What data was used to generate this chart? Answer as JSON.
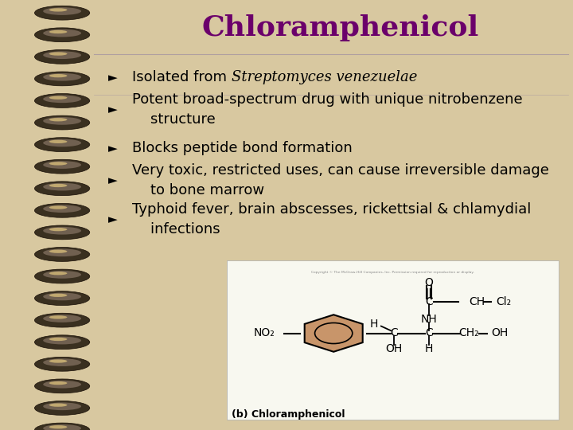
{
  "title": "Chloramphenicol",
  "title_color": "#6B006B",
  "title_fontsize": 26,
  "bg_color": "#E0DAE0",
  "notebook_bg": "#D8C8A0",
  "bullet_char": "►",
  "bullet_color": "#000000",
  "text_color": "#000000",
  "bullet_fontsize": 13,
  "line_color": "#B0A0A0",
  "bullets": [
    {
      "normal": "Isolated from ",
      "italic": "Streptomyces venezuelae",
      "rest": ""
    },
    {
      "normal": "Potent broad-spectrum drug with unique nitrobenzene\n    structure",
      "italic": "",
      "rest": ""
    },
    {
      "normal": "Blocks peptide bond formation",
      "italic": "",
      "rest": ""
    },
    {
      "normal": "Very toxic, restricted uses, can cause irreversible damage\n    to bone marrow",
      "italic": "",
      "rest": ""
    },
    {
      "normal": "Typhoid fever, brain abscesses, rickettsial & chlamydial\n    infections",
      "italic": "",
      "rest": ""
    }
  ],
  "img_bg": "#F8F8F0",
  "benzene_color": "#C8956A",
  "chem_label": "(b) Chloramphenicol",
  "copyright_text": "Copyright © The McGraw-Hill Companies, Inc. Permission required for reproduction or display.",
  "spiral_count": 20,
  "spiral_bg_color": "#8B6914",
  "spiral_oval_dark": "#3A3020",
  "spiral_oval_mid": "#706050",
  "spiral_oval_light": "#C0A870"
}
